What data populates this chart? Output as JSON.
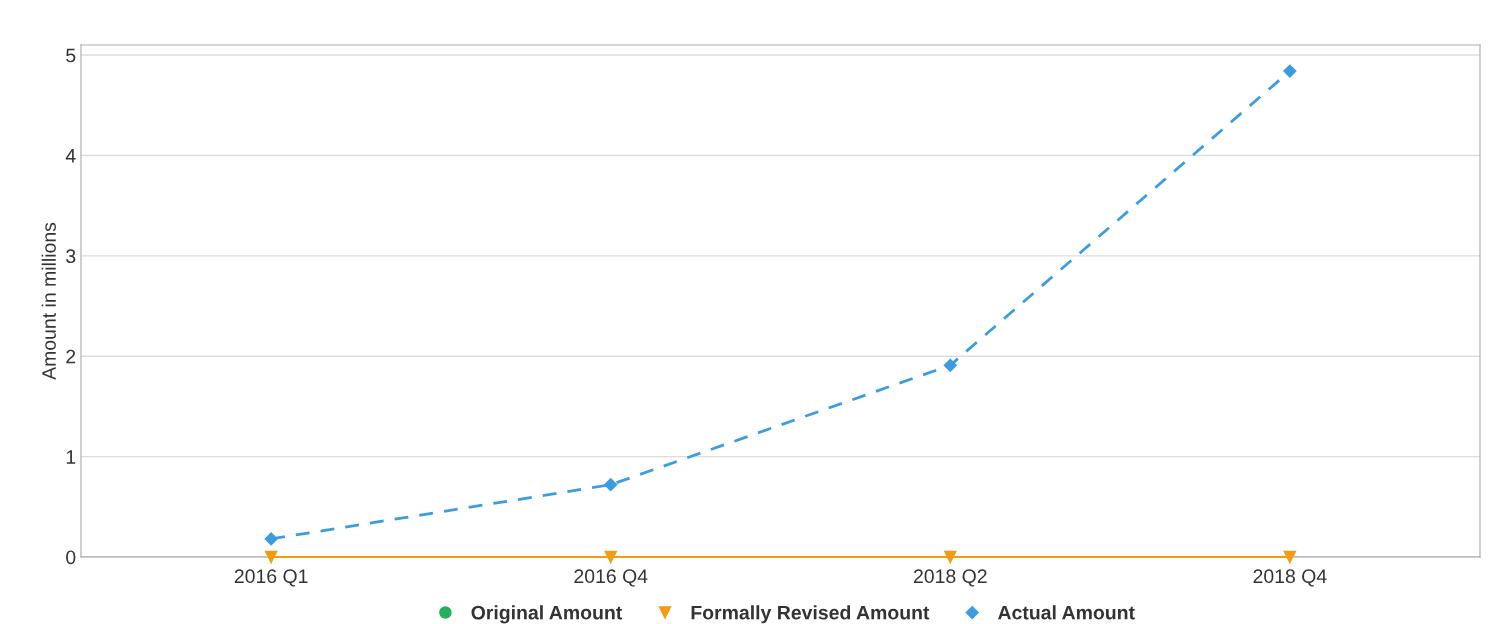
{
  "chart_data": {
    "type": "line",
    "ylabel": "Amount in millions",
    "categories": [
      "2016 Q1",
      "2016 Q4",
      "2018 Q2",
      "2018 Q4"
    ],
    "series": [
      {
        "name": "Original Amount",
        "color": "#27ae60",
        "values": [
          null,
          null,
          null,
          null
        ],
        "marker": "circle",
        "line_style": "solid"
      },
      {
        "name": "Formally Revised Amount",
        "color": "#f39c12",
        "values": [
          0,
          0,
          0,
          0
        ],
        "marker": "triangle",
        "line_style": "solid"
      },
      {
        "name": "Actual Amount",
        "color": "#3b9de0",
        "values": [
          0.18,
          0.72,
          1.91,
          4.84
        ],
        "marker": "diamond",
        "line_style": "dashed"
      }
    ],
    "ylim": [
      0,
      5.1
    ],
    "yticks": [
      0,
      1,
      2,
      3,
      4,
      5
    ],
    "grid": "y",
    "legend": "bottom"
  }
}
